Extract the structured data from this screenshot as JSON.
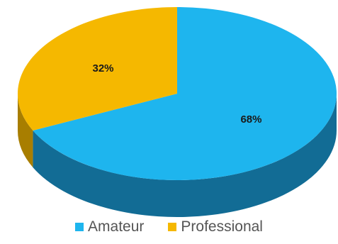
{
  "chart_data": {
    "type": "pie",
    "variant": "3d",
    "categories": [
      "Amateur",
      "Professional"
    ],
    "values": [
      68,
      32
    ],
    "data_labels": [
      "68%",
      "32%"
    ],
    "colors": [
      "#1EB5EE",
      "#F5B800"
    ],
    "side_colors": [
      "#126C95",
      "#A87E00"
    ],
    "legend": {
      "placement": "bottom",
      "items": [
        {
          "label": "Amateur",
          "color": "#1EB5EE"
        },
        {
          "label": "Professional",
          "color": "#F5B800"
        }
      ]
    },
    "title": ""
  }
}
